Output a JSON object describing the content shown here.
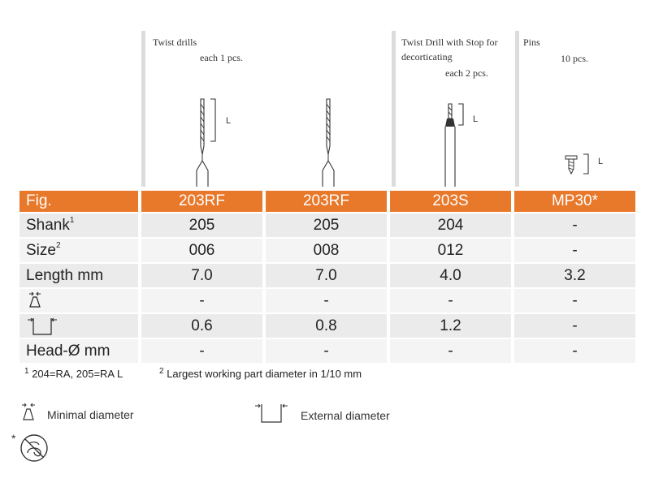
{
  "columns": [
    {
      "group_title": "Twist drills",
      "group_qty": "each 1 pcs.",
      "fig": "203RF",
      "shank": "205",
      "size": "006",
      "length": "7.0",
      "minimal": "-",
      "external": "0.6",
      "head": "-"
    },
    {
      "group_title": "",
      "group_qty": "",
      "fig": "203RF",
      "shank": "205",
      "size": "008",
      "length": "7.0",
      "minimal": "-",
      "external": "0.8",
      "head": "-"
    },
    {
      "group_title": "Twist Drill with Stop for decorticating",
      "group_qty": "each 2 pcs.",
      "fig": "203S",
      "shank": "204",
      "size": "012",
      "length": "4.0",
      "minimal": "-",
      "external": "1.2",
      "head": "-"
    },
    {
      "group_title": "Pins",
      "group_qty": "10 pcs.",
      "fig": "MP30*",
      "shank": "-",
      "size": "-",
      "length": "3.2",
      "minimal": "-",
      "external": "-",
      "head": "-"
    }
  ],
  "headers": {
    "g1_title": "Twist drills",
    "g1_qty": "each 1 pcs.",
    "g3_title_line1": "Twist Drill with Stop for",
    "g3_title_line2": "decorticating",
    "g3_qty": "each 2 pcs.",
    "g4_title": "Pins",
    "g4_qty": "10 pcs.",
    "dim_label": "L"
  },
  "rows": {
    "fig": "Fig.",
    "shank": "Shank",
    "shank_sup": "1",
    "size": "Size",
    "size_sup": "2",
    "length": "Length mm",
    "head": "Head-Ø mm"
  },
  "cells": {
    "fig": [
      "203RF",
      "203RF",
      "203S",
      "MP30*"
    ],
    "shank": [
      "205",
      "205",
      "204",
      "-"
    ],
    "size": [
      "006",
      "008",
      "012",
      "-"
    ],
    "length": [
      "7.0",
      "7.0",
      "4.0",
      "3.2"
    ],
    "minimal": [
      "-",
      "-",
      "-",
      "-"
    ],
    "external": [
      "0.6",
      "0.8",
      "1.2",
      "-"
    ],
    "head": [
      "-",
      "-",
      "-",
      "-"
    ]
  },
  "footnotes": {
    "f1_mark": "1",
    "f1_text": "204=RA, 205=RA L",
    "f2_mark": "2",
    "f2_text": "Largest working part diameter in 1/10 mm"
  },
  "legend": {
    "minimal": "Minimal diameter",
    "external": "External diameter",
    "asterisk": "*"
  },
  "icons": {
    "minimal_icon": "minimal-diameter-icon",
    "external_icon": "external-diameter-icon",
    "single_use_icon": "do-not-reuse-icon"
  },
  "colors": {
    "header_orange": "#e8782a",
    "row_grey": "#ebebeb"
  }
}
